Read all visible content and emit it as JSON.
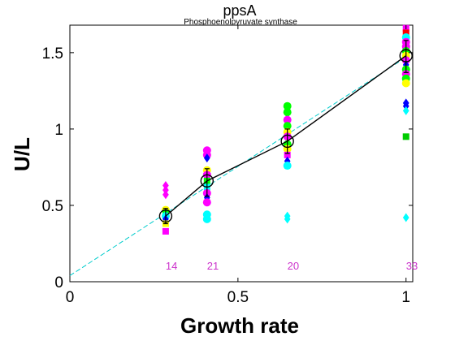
{
  "chart_data": {
    "type": "scatter",
    "title": "ppsA",
    "subtitle": "Phosphoenolpyruvate synthase",
    "xlabel": "Growth rate",
    "ylabel": "U/L",
    "xlim": [
      0,
      1.02
    ],
    "ylim": [
      0,
      1.68
    ],
    "xticks": [
      0,
      0.5,
      1
    ],
    "xtick_labels": [
      "0",
      "0.5",
      "1"
    ],
    "yticks": [
      0,
      0.5,
      1,
      1.5
    ],
    "ytick_labels": [
      "0",
      "0.5",
      "1",
      "1.5"
    ],
    "grid": false,
    "scatter_points": [
      {
        "x": 0.285,
        "y": 0.63,
        "color": "#ff00ff",
        "marker": "diamond"
      },
      {
        "x": 0.285,
        "y": 0.6,
        "color": "#ff00ff",
        "marker": "diamond"
      },
      {
        "x": 0.285,
        "y": 0.57,
        "color": "#ff00ff",
        "marker": "diamond"
      },
      {
        "x": 0.285,
        "y": 0.47,
        "color": "#ffff00",
        "marker": "circle"
      },
      {
        "x": 0.285,
        "y": 0.45,
        "color": "#00ff00",
        "marker": "square"
      },
      {
        "x": 0.285,
        "y": 0.43,
        "color": "#00ffff",
        "marker": "circle"
      },
      {
        "x": 0.285,
        "y": 0.41,
        "color": "#0000ff",
        "marker": "diamond"
      },
      {
        "x": 0.285,
        "y": 0.38,
        "color": "#ffff00",
        "marker": "square"
      },
      {
        "x": 0.285,
        "y": 0.33,
        "color": "#ff00ff",
        "marker": "square"
      },
      {
        "x": 0.408,
        "y": 0.86,
        "color": "#ff00ff",
        "marker": "circle"
      },
      {
        "x": 0.408,
        "y": 0.83,
        "color": "#ff00ff",
        "marker": "circle"
      },
      {
        "x": 0.408,
        "y": 0.81,
        "color": "#0000ff",
        "marker": "diamond"
      },
      {
        "x": 0.408,
        "y": 0.73,
        "color": "#ffff00",
        "marker": "circle"
      },
      {
        "x": 0.408,
        "y": 0.7,
        "color": "#ff00ff",
        "marker": "circle"
      },
      {
        "x": 0.408,
        "y": 0.66,
        "color": "#00ff00",
        "marker": "square"
      },
      {
        "x": 0.408,
        "y": 0.62,
        "color": "#00ffff",
        "marker": "square"
      },
      {
        "x": 0.408,
        "y": 0.58,
        "color": "#ff00ff",
        "marker": "circle"
      },
      {
        "x": 0.408,
        "y": 0.55,
        "color": "#0000ff",
        "marker": "diamond"
      },
      {
        "x": 0.408,
        "y": 0.52,
        "color": "#ff00ff",
        "marker": "circle"
      },
      {
        "x": 0.408,
        "y": 0.44,
        "color": "#00ffff",
        "marker": "circle"
      },
      {
        "x": 0.408,
        "y": 0.41,
        "color": "#00ffff",
        "marker": "circle"
      },
      {
        "x": 0.647,
        "y": 1.15,
        "color": "#00ff00",
        "marker": "circle"
      },
      {
        "x": 0.647,
        "y": 1.11,
        "color": "#00ff00",
        "marker": "circle"
      },
      {
        "x": 0.647,
        "y": 1.06,
        "color": "#ff00ff",
        "marker": "circle"
      },
      {
        "x": 0.647,
        "y": 1.02,
        "color": "#00ff00",
        "marker": "circle"
      },
      {
        "x": 0.647,
        "y": 0.98,
        "color": "#ffff00",
        "marker": "circle"
      },
      {
        "x": 0.647,
        "y": 0.95,
        "color": "#ff00ff",
        "marker": "circle"
      },
      {
        "x": 0.647,
        "y": 0.9,
        "color": "#00ff00",
        "marker": "circle"
      },
      {
        "x": 0.647,
        "y": 0.87,
        "color": "#ffff00",
        "marker": "circle"
      },
      {
        "x": 0.647,
        "y": 0.83,
        "color": "#ff00ff",
        "marker": "square"
      },
      {
        "x": 0.647,
        "y": 0.79,
        "color": "#0000ff",
        "marker": "diamond"
      },
      {
        "x": 0.647,
        "y": 0.76,
        "color": "#00ffff",
        "marker": "circle"
      },
      {
        "x": 0.647,
        "y": 0.43,
        "color": "#00ffff",
        "marker": "diamond"
      },
      {
        "x": 0.647,
        "y": 0.41,
        "color": "#00ffff",
        "marker": "diamond"
      },
      {
        "x": 1.0,
        "y": 1.66,
        "color": "#ff00ff",
        "marker": "square"
      },
      {
        "x": 1.0,
        "y": 1.63,
        "color": "#ff0000",
        "marker": "square"
      },
      {
        "x": 1.0,
        "y": 1.6,
        "color": "#00ffff",
        "marker": "circle"
      },
      {
        "x": 1.0,
        "y": 1.57,
        "color": "#ff00ff",
        "marker": "circle"
      },
      {
        "x": 1.0,
        "y": 1.54,
        "color": "#ff00ff",
        "marker": "circle"
      },
      {
        "x": 1.0,
        "y": 1.51,
        "color": "#00ff00",
        "marker": "circle"
      },
      {
        "x": 1.0,
        "y": 1.48,
        "color": "#ffff00",
        "marker": "circle"
      },
      {
        "x": 1.0,
        "y": 1.45,
        "color": "#ff00ff",
        "marker": "circle"
      },
      {
        "x": 1.0,
        "y": 1.42,
        "color": "#0000ff",
        "marker": "diamond"
      },
      {
        "x": 1.0,
        "y": 1.39,
        "color": "#00ff00",
        "marker": "circle"
      },
      {
        "x": 1.0,
        "y": 1.36,
        "color": "#ff00ff",
        "marker": "circle"
      },
      {
        "x": 1.0,
        "y": 1.33,
        "color": "#00ff00",
        "marker": "circle"
      },
      {
        "x": 1.0,
        "y": 1.3,
        "color": "#ffff00",
        "marker": "circle"
      },
      {
        "x": 1.0,
        "y": 1.17,
        "color": "#0000ff",
        "marker": "diamond"
      },
      {
        "x": 1.0,
        "y": 1.15,
        "color": "#0000ff",
        "marker": "diamond"
      },
      {
        "x": 1.0,
        "y": 1.12,
        "color": "#00ffff",
        "marker": "diamond"
      },
      {
        "x": 1.0,
        "y": 0.95,
        "color": "#00cc00",
        "marker": "square"
      },
      {
        "x": 1.0,
        "y": 0.42,
        "color": "#00ffff",
        "marker": "diamond"
      }
    ],
    "mean_series": {
      "line_color": "#000000",
      "points": [
        {
          "x": 0.285,
          "y": 0.43,
          "err_low": 0.05,
          "err_high": 0.05
        },
        {
          "x": 0.408,
          "y": 0.66,
          "err_low": 0.1,
          "err_high": 0.08
        },
        {
          "x": 0.647,
          "y": 0.92,
          "err_low": 0.08,
          "err_high": 0.08
        },
        {
          "x": 1.0,
          "y": 1.48,
          "err_low": 0.11,
          "err_high": 0.1
        }
      ]
    },
    "fit_line": {
      "color": "#00cccc",
      "x": [
        0,
        1.0
      ],
      "y": [
        0.04,
        1.47
      ]
    },
    "count_labels": [
      {
        "x": 0.285,
        "text": "14"
      },
      {
        "x": 0.408,
        "text": "21"
      },
      {
        "x": 0.647,
        "text": "20"
      },
      {
        "x": 1.0,
        "text": "33"
      }
    ],
    "count_label_y": 0.1,
    "count_label_color": "#cc33cc"
  }
}
